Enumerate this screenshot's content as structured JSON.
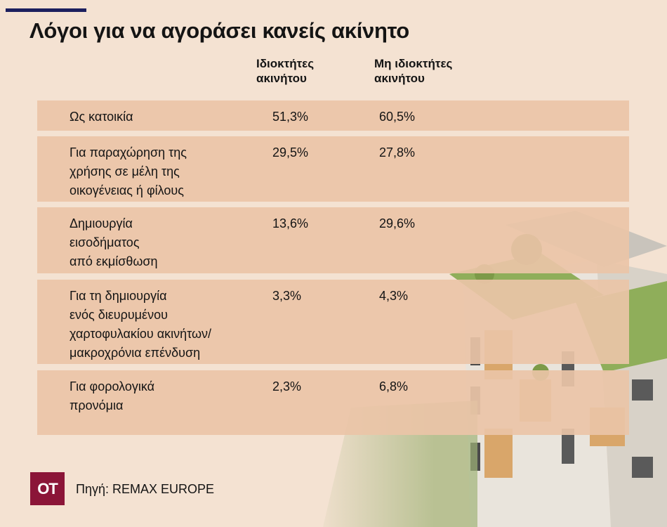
{
  "title": "Λόγοι για να αγοράσει κανείς ακίνητο",
  "columns": {
    "owners": "Ιδιοκτήτες\nακινήτου",
    "non_owners": "Μη ιδιοκτήτες\nακινήτου"
  },
  "chart_data": {
    "type": "table",
    "title": "Λόγοι για να αγοράσει κανείς ακίνητο",
    "columns": [
      "",
      "Ιδιοκτήτες ακινήτου",
      "Μη ιδιοκτήτες ακινήτου"
    ],
    "rows": [
      {
        "label": "Ως κατοικία",
        "owners": "51,3%",
        "non_owners": "60,5%"
      },
      {
        "label": "Για παραχώρηση της\nχρήσης σε μέλη της\nοικογένειας ή φίλους",
        "owners": "29,5%",
        "non_owners": "27,8%"
      },
      {
        "label": "Δημιουργία\nεισοδήματος\nαπό εκμίσθωση",
        "owners": "13,6%",
        "non_owners": "29,6%"
      },
      {
        "label": "Για τη δημιουργία\nενός διευρυμένου\nχαρτοφυλακίου ακινήτων/\nμακροχρόνια επένδυση",
        "owners": "3,3%",
        "non_owners": "4,3%"
      },
      {
        "label": "Για φορολογικά\nπρονόμια",
        "owners": "2,3%",
        "non_owners": "6,8%"
      }
    ]
  },
  "logo": "OT",
  "source": "Πηγή: REMAX EUROPE",
  "colors": {
    "accent": "#8b1538",
    "rule": "#1c1f5e",
    "row": "#eac4a7",
    "background": "#f4e2d2"
  }
}
